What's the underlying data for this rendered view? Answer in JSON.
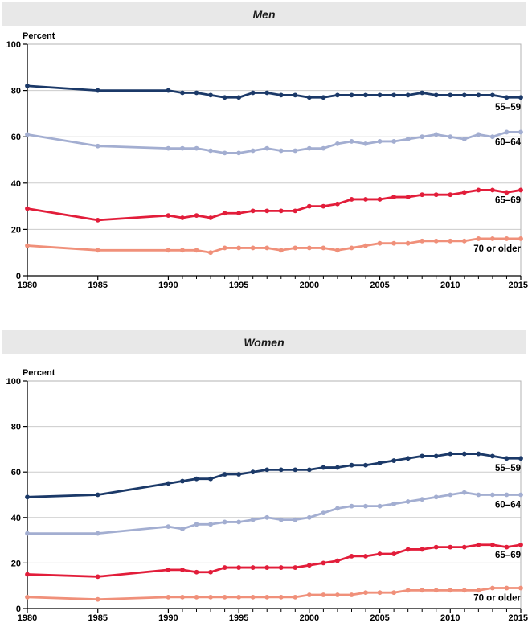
{
  "style": {
    "title_bar_color": "#e8e8e8",
    "gridline_color": "#cccccc",
    "frame_color": "#b3b3b3",
    "axis_color": "#000000",
    "text_color": "#000000"
  },
  "chart_data": [
    {
      "type": "line",
      "title": "Men",
      "ylabel": "Percent",
      "ylim": [
        0,
        100
      ],
      "yticks": [
        0,
        20,
        40,
        60,
        80,
        100
      ],
      "xticks_labeled": [
        1980,
        1985,
        1990,
        1995,
        2000,
        2005,
        2010,
        2015
      ],
      "xticks_minor_yearly_range": [
        1990,
        2015
      ],
      "grid": "horizontal",
      "legend_position": "end-of-line",
      "markers": "circle",
      "x": [
        1980,
        1985,
        1990,
        1991,
        1992,
        1993,
        1994,
        1995,
        1996,
        1997,
        1998,
        1999,
        2000,
        2001,
        2002,
        2003,
        2004,
        2005,
        2006,
        2007,
        2008,
        2009,
        2010,
        2011,
        2012,
        2013,
        2014,
        2015
      ],
      "series": [
        {
          "name": "55–59",
          "color": "#1b3968",
          "values": [
            82,
            80,
            80,
            79,
            79,
            78,
            77,
            77,
            79,
            79,
            78,
            78,
            77,
            77,
            78,
            78,
            78,
            78,
            78,
            78,
            79,
            78,
            78,
            78,
            78,
            78,
            77,
            77
          ]
        },
        {
          "name": "60–64",
          "color": "#a3aed1",
          "values": [
            61,
            56,
            55,
            55,
            55,
            54,
            53,
            53,
            54,
            55,
            54,
            54,
            55,
            55,
            57,
            58,
            57,
            58,
            58,
            59,
            60,
            61,
            60,
            59,
            61,
            60,
            62,
            62
          ]
        },
        {
          "name": "65–69",
          "color": "#e21d3a",
          "values": [
            29,
            24,
            26,
            25,
            26,
            25,
            27,
            27,
            28,
            28,
            28,
            28,
            30,
            30,
            31,
            33,
            33,
            33,
            34,
            34,
            35,
            35,
            35,
            36,
            37,
            37,
            36,
            37
          ]
        },
        {
          "name": "70 or older",
          "color": "#f0907a",
          "values": [
            13,
            11,
            11,
            11,
            11,
            10,
            12,
            12,
            12,
            12,
            11,
            12,
            12,
            12,
            11,
            12,
            13,
            14,
            14,
            14,
            15,
            15,
            15,
            15,
            16,
            16,
            16,
            16
          ]
        }
      ]
    },
    {
      "type": "line",
      "title": "Women",
      "ylabel": "Percent",
      "ylim": [
        0,
        100
      ],
      "yticks": [
        0,
        20,
        40,
        60,
        80,
        100
      ],
      "xticks_labeled": [
        1980,
        1985,
        1990,
        1995,
        2000,
        2005,
        2010,
        2015
      ],
      "xticks_minor_yearly_range": [
        1990,
        2015
      ],
      "grid": "horizontal",
      "legend_position": "end-of-line",
      "markers": "circle",
      "x": [
        1980,
        1985,
        1990,
        1991,
        1992,
        1993,
        1994,
        1995,
        1996,
        1997,
        1998,
        1999,
        2000,
        2001,
        2002,
        2003,
        2004,
        2005,
        2006,
        2007,
        2008,
        2009,
        2010,
        2011,
        2012,
        2013,
        2014,
        2015
      ],
      "series": [
        {
          "name": "55–59",
          "color": "#1b3968",
          "values": [
            49,
            50,
            55,
            56,
            57,
            57,
            59,
            59,
            60,
            61,
            61,
            61,
            61,
            62,
            62,
            63,
            63,
            64,
            65,
            66,
            67,
            67,
            68,
            68,
            68,
            67,
            66,
            66
          ]
        },
        {
          "name": "60–64",
          "color": "#a3aed1",
          "values": [
            33,
            33,
            36,
            35,
            37,
            37,
            38,
            38,
            39,
            40,
            39,
            39,
            40,
            42,
            44,
            45,
            45,
            45,
            46,
            47,
            48,
            49,
            50,
            51,
            50,
            50,
            50,
            50
          ]
        },
        {
          "name": "65–69",
          "color": "#e21d3a",
          "values": [
            15,
            14,
            17,
            17,
            16,
            16,
            18,
            18,
            18,
            18,
            18,
            18,
            19,
            20,
            21,
            23,
            23,
            24,
            24,
            26,
            26,
            27,
            27,
            27,
            28,
            28,
            27,
            28
          ]
        },
        {
          "name": "70 or older",
          "color": "#f0907a",
          "values": [
            5,
            4,
            5,
            5,
            5,
            5,
            5,
            5,
            5,
            5,
            5,
            5,
            6,
            6,
            6,
            6,
            7,
            7,
            7,
            8,
            8,
            8,
            8,
            8,
            8,
            9,
            9,
            9
          ]
        }
      ]
    }
  ]
}
